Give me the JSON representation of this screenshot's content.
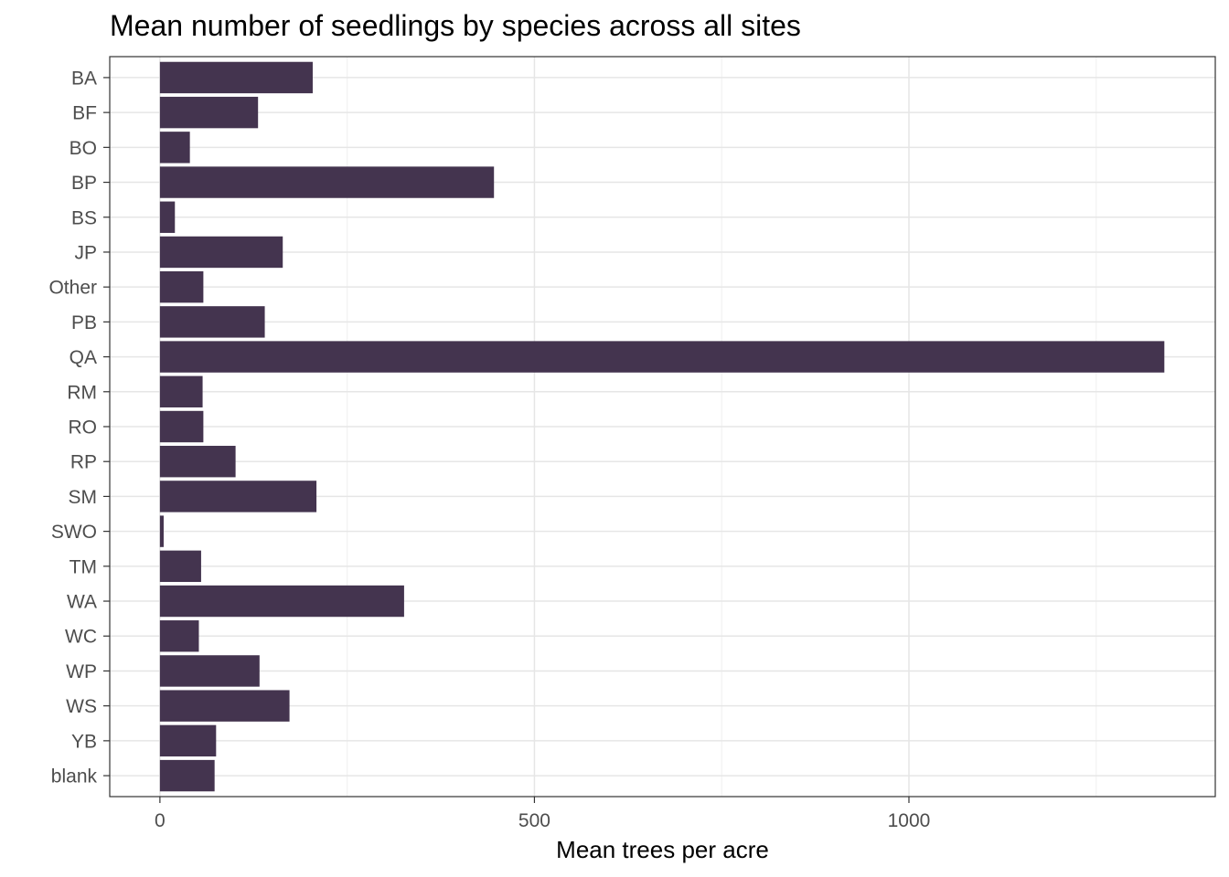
{
  "chart_data": {
    "type": "bar",
    "orientation": "horizontal",
    "title": "Mean number of seedlings by species across all sites",
    "xlabel": "Mean trees per acre",
    "ylabel": "",
    "categories": [
      "BA",
      "BF",
      "BO",
      "BP",
      "BS",
      "JP",
      "Other",
      "PB",
      "QA",
      "RM",
      "RO",
      "RP",
      "SM",
      "SWO",
      "TM",
      "WA",
      "WC",
      "WP",
      "WS",
      "YB",
      "blank"
    ],
    "values": [
      204,
      131,
      40,
      446,
      20,
      164,
      58,
      140,
      1341,
      57,
      58,
      101,
      209,
      5,
      55,
      326,
      52,
      133,
      173,
      75,
      73
    ],
    "xlim": [
      -67,
      1409
    ],
    "xticks": [
      0,
      500,
      1000
    ],
    "grid": true,
    "legend": "none",
    "bar_color": "#44344f"
  }
}
